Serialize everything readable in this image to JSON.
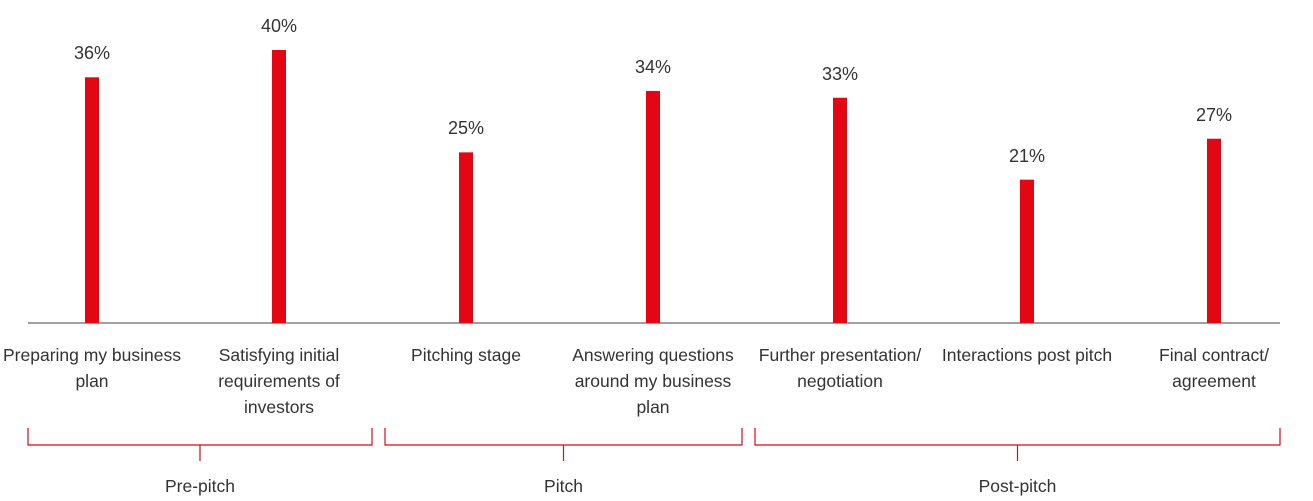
{
  "chart_data": {
    "type": "bar",
    "categories": [
      "Preparing my business plan",
      "Satisfying initial requirements of investors",
      "Pitching stage",
      "Answering questions around my business plan",
      "Further presentation/ negotiation",
      "Interactions post pitch",
      "Final contract/ agreement"
    ],
    "values": [
      36,
      40,
      25,
      34,
      33,
      21,
      27
    ],
    "value_labels": [
      "36%",
      "40%",
      "25%",
      "34%",
      "33%",
      "21%",
      "27%"
    ],
    "color": "#e30613",
    "groups": [
      "Pre-pitch",
      "Pitch",
      "Post-pitch"
    ]
  }
}
